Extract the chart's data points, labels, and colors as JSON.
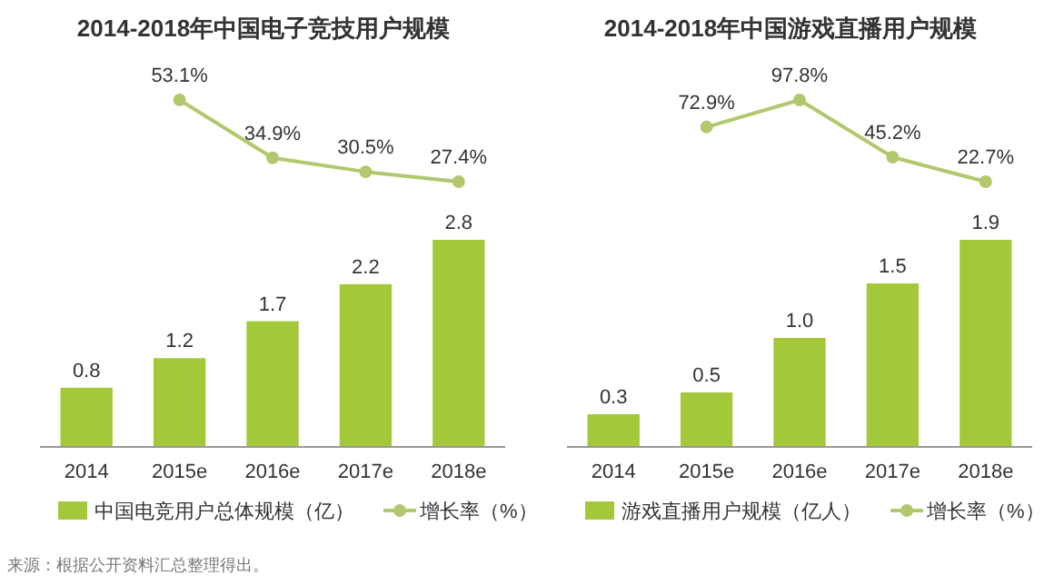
{
  "chart_data": [
    {
      "type": "line",
      "title": "2014-2018年中国电子竞技用户规模",
      "categories": [
        null,
        null,
        null,
        null,
        null
      ],
      "legend": "bottom",
      "marker": "circle",
      "series": [
        {
          "name": "增长率（%）",
          "color": "#b2c86e",
          "values": [
            null,
            53.1,
            34.9,
            30.5,
            27.4
          ],
          "value_labels": [
            null,
            "53.1%",
            "34.9%",
            "30.5%",
            "27.4%"
          ]
        }
      ]
    },
    {
      "type": "bar",
      "categories": [
        "2014",
        "2015e",
        "2016e",
        "2017e",
        "2018e"
      ],
      "legend": "bottom",
      "series": [
        {
          "name": "中国电竞用户总体规模（亿）",
          "color": "#a3c93a",
          "values": [
            0.8,
            1.2,
            1.7,
            2.2,
            2.8
          ],
          "value_labels": [
            "0.8",
            "1.2",
            "1.7",
            "2.2",
            "2.8"
          ]
        }
      ],
      "annotations": [
        "来源：根据公开资料汇总整理得出。"
      ]
    },
    {
      "type": "line",
      "title": "2014-2018年中国游戏直播用户规模",
      "categories": [
        null,
        null,
        null,
        null,
        null
      ],
      "legend": "bottom",
      "marker": "circle",
      "series": [
        {
          "name": "增长率（%）",
          "color": "#b2c86e",
          "values": [
            null,
            72.9,
            97.8,
            45.2,
            22.7
          ],
          "value_labels": [
            null,
            "72.9%",
            "97.8%",
            "45.2%",
            "22.7%"
          ]
        }
      ]
    },
    {
      "type": "bar",
      "categories": [
        "2014",
        "2015e",
        "2016e",
        "2017e",
        "2018e"
      ],
      "legend": "bottom",
      "series": [
        {
          "name": "游戏直播用户规模（亿人）",
          "color": "#a3c93a",
          "values": [
            0.3,
            0.5,
            1.0,
            1.5,
            1.9
          ],
          "value_labels": [
            "0.3",
            "0.5",
            "1.0",
            "1.5",
            "1.9"
          ]
        }
      ]
    }
  ]
}
